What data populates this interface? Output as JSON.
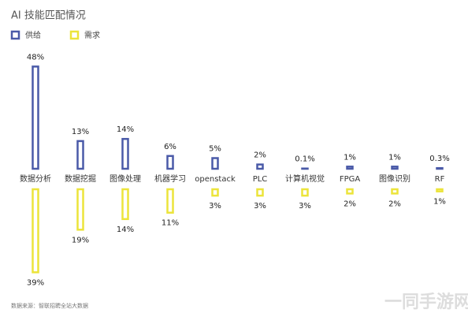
{
  "chart_data": {
    "type": "diverging-bar",
    "title": "AI 技能匹配情况",
    "categories": [
      "数据分析",
      "数据挖掘",
      "图像处理",
      "机器学习",
      "openstack",
      "PLC",
      "计算机视觉",
      "FPGA",
      "图像识别",
      "RF"
    ],
    "series": [
      {
        "name": "供给",
        "color": "#4a5aa8",
        "values": [
          48,
          13,
          14,
          6,
          5,
          2,
          0.1,
          1,
          1,
          0.3
        ],
        "value_labels": [
          "48%",
          "13%",
          "14%",
          "6%",
          "5%",
          "2%",
          "0.1%",
          "1%",
          "1%",
          "0.3%"
        ]
      },
      {
        "name": "需求",
        "color": "#ece43a",
        "values": [
          39,
          19,
          14,
          11,
          3,
          3,
          3,
          2,
          2,
          1
        ],
        "value_labels": [
          "39%",
          "19%",
          "14%",
          "11%",
          "3%",
          "3%",
          "3%",
          "2%",
          "2%",
          "1%"
        ]
      }
    ],
    "source": "数据来源：智联招聘全站大数据",
    "watermark": "一同手游网"
  }
}
